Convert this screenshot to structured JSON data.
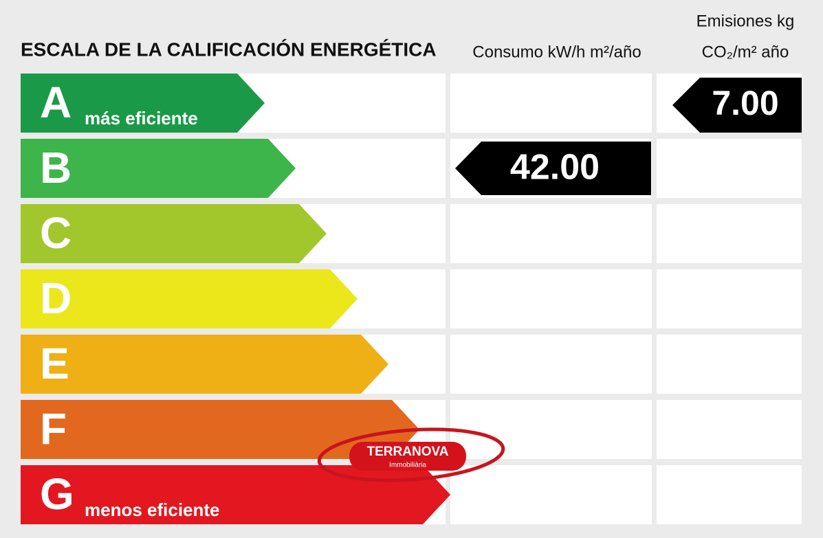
{
  "header": {
    "title": "ESCALA DE LA CALIFICACIÓN ENERGÉTICA",
    "consumption": "Consumo kW/h m²/año",
    "emissions_line1": "Emisiones kg",
    "emissions_line2": "CO₂/m² año"
  },
  "rows": [
    {
      "letter": "A",
      "color": "#1a9a48",
      "note": "más eficiente",
      "emissions": "7.00"
    },
    {
      "letter": "B",
      "color": "#3db54a",
      "consumption": "42.00"
    },
    {
      "letter": "C",
      "color": "#a2c72c"
    },
    {
      "letter": "D",
      "color": "#ebe71b"
    },
    {
      "letter": "E",
      "color": "#efb016"
    },
    {
      "letter": "F",
      "color": "#e3681f"
    },
    {
      "letter": "G",
      "color": "#e2171f",
      "note": "menos eficiente"
    }
  ],
  "logo": {
    "name": "TERRANOVA",
    "subtitle": "Immobiliària"
  }
}
